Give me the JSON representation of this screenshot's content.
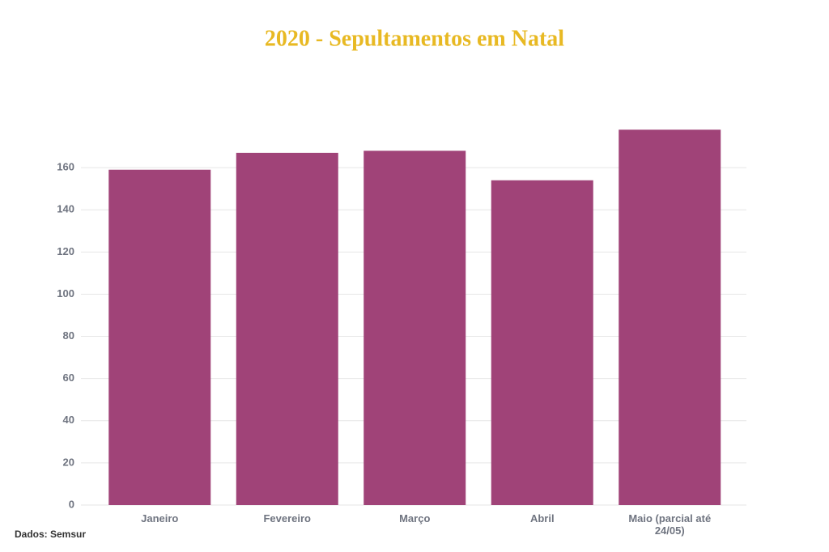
{
  "chart_data": {
    "type": "bar",
    "title": "2020 - Sepultamentos em Natal",
    "categories": [
      "Janeiro",
      "Fevereiro",
      "Março",
      "Abril",
      "Maio (parcial até 24/05)"
    ],
    "values": [
      159,
      167,
      168,
      154,
      178
    ],
    "color": "#a04378",
    "ylim": [
      0,
      180
    ],
    "yticks": [
      0,
      20,
      40,
      60,
      80,
      100,
      120,
      140,
      160
    ],
    "grid": true,
    "source": "Dados: Semsur"
  }
}
